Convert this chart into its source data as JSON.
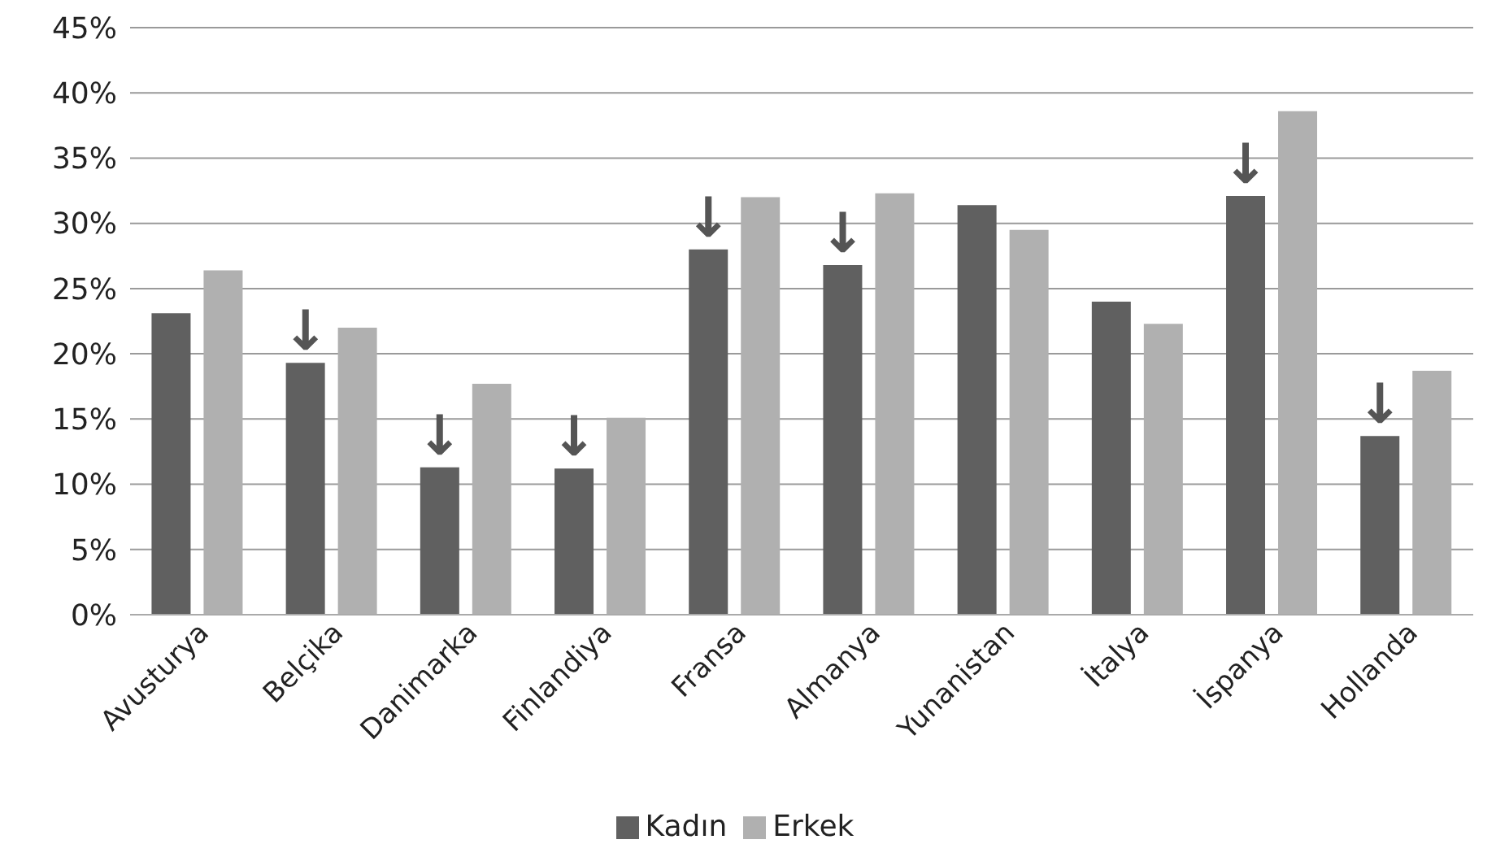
{
  "chart_data": {
    "type": "bar",
    "categories": [
      "Avusturya",
      "Belçika",
      "Danimarka",
      "Finlandiya",
      "Fransa",
      "Almanya",
      "Yunanistan",
      "İtalya",
      "İspanya",
      "Hollanda"
    ],
    "series": [
      {
        "name": "Kadın",
        "color": "#606060",
        "values": [
          23.1,
          19.3,
          11.3,
          11.2,
          28.0,
          26.8,
          31.4,
          24.0,
          32.1,
          13.7
        ]
      },
      {
        "name": "Erkek",
        "color": "#b0b0b0",
        "values": [
          26.4,
          22.0,
          17.7,
          15.1,
          32.0,
          32.3,
          29.5,
          22.3,
          38.6,
          18.7
        ]
      }
    ],
    "ylim": [
      0,
      45
    ],
    "yticks": [
      {
        "value": 0,
        "label": "0%"
      },
      {
        "value": 5,
        "label": "5%"
      },
      {
        "value": 10,
        "label": "10%"
      },
      {
        "value": 15,
        "label": "15%"
      },
      {
        "value": 20,
        "label": "20%"
      },
      {
        "value": 25,
        "label": "25%"
      },
      {
        "value": 30,
        "label": "30%"
      },
      {
        "value": 35,
        "label": "35%"
      },
      {
        "value": 40,
        "label": "40%"
      },
      {
        "value": 45,
        "label": "45%"
      }
    ],
    "grid": "y",
    "legend": "bottom",
    "annotations": [
      {
        "text": "↓",
        "x": "Belçika",
        "y": 19.3
      },
      {
        "text": "↓",
        "x": "Danimarka",
        "y": 11.3
      },
      {
        "text": "↓",
        "x": "Finlandiya",
        "y": 11.2
      },
      {
        "text": "↓",
        "x": "Fransa",
        "y": 28.0
      },
      {
        "text": "↓",
        "x": "Almanya",
        "y": 26.8
      },
      {
        "text": "↓",
        "x": "İspanya",
        "y": 32.1
      },
      {
        "text": "↓",
        "x": "Hollanda",
        "y": 13.7
      }
    ]
  }
}
